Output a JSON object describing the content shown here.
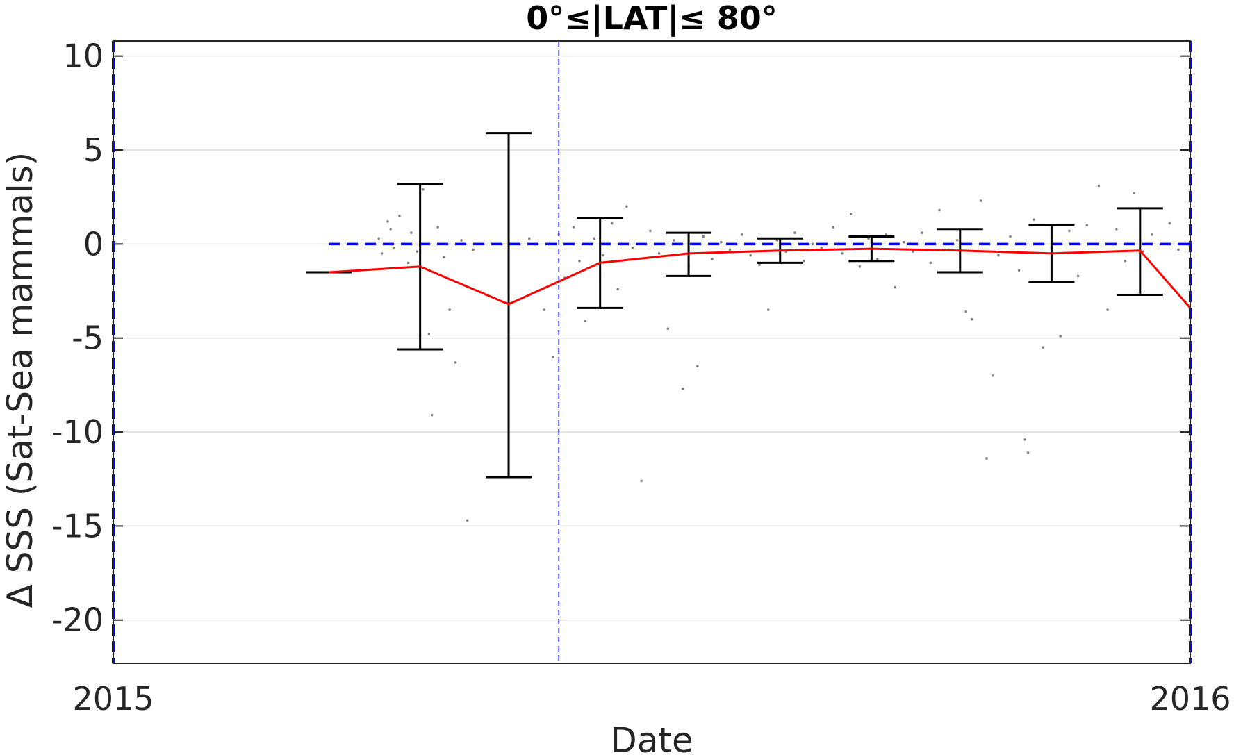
{
  "chart_data": {
    "type": "scatter",
    "title": "0°≤|LAT|≤ 80°",
    "xlabel": "Date",
    "ylabel": "Δ SSS (Sat-Sea mammals)",
    "xlim": [
      "2015-01-01",
      "2016-01-01"
    ],
    "ylim": [
      -22.3,
      10.8
    ],
    "x_ticks": [
      {
        "date": "2015-01-01",
        "label": "2015"
      },
      {
        "date": "2016-01-01",
        "label": "2016"
      }
    ],
    "y_ticks": [
      10,
      5,
      0,
      -5,
      -10,
      -15,
      -20
    ],
    "grid": true,
    "reference_lines": {
      "zero_line": {
        "y": 0,
        "color": "#0000ff",
        "style": "dashed"
      },
      "vertical_lines": [
        "2015-01-01",
        "2015-06-01",
        "2016-01-01"
      ]
    },
    "colors": {
      "mean_line": "#ff0000",
      "error_bars": "#000000",
      "points": "#808080",
      "reference": "#0000ff"
    },
    "monthly_mean": {
      "dates": [
        "2015-03-15",
        "2015-04-15",
        "2015-05-15",
        "2015-06-15",
        "2015-07-15",
        "2015-08-15",
        "2015-09-15",
        "2015-10-15",
        "2015-11-15",
        "2015-12-15",
        "2016-01-01"
      ],
      "values": [
        -1.5,
        -1.2,
        -3.2,
        -1.0,
        -0.5,
        -0.35,
        -0.25,
        -0.35,
        -0.5,
        -0.35,
        -3.4
      ]
    },
    "error_bars": [
      {
        "date": "2015-03-15",
        "lower": -1.5,
        "upper": -1.5
      },
      {
        "date": "2015-04-15",
        "lower": -5.6,
        "upper": 3.2
      },
      {
        "date": "2015-05-15",
        "lower": -12.4,
        "upper": 5.9
      },
      {
        "date": "2015-06-15",
        "lower": -3.4,
        "upper": 1.4
      },
      {
        "date": "2015-07-15",
        "lower": -1.7,
        "upper": 0.6
      },
      {
        "date": "2015-08-15",
        "lower": -1.0,
        "upper": 0.3
      },
      {
        "date": "2015-09-15",
        "lower": -0.9,
        "upper": 0.4
      },
      {
        "date": "2015-10-15",
        "lower": -1.5,
        "upper": 0.8
      },
      {
        "date": "2015-11-15",
        "lower": -2.0,
        "upper": 1.0
      },
      {
        "date": "2015-12-15",
        "lower": -2.7,
        "upper": 1.9
      }
    ],
    "scatter_points": [
      {
        "x": "2015-04-01",
        "y": 0.3
      },
      {
        "x": "2015-04-02",
        "y": -0.5
      },
      {
        "x": "2015-04-04",
        "y": 1.2
      },
      {
        "x": "2015-04-05",
        "y": 0.8
      },
      {
        "x": "2015-04-06",
        "y": -0.2
      },
      {
        "x": "2015-04-08",
        "y": 1.5
      },
      {
        "x": "2015-04-09",
        "y": 0.0
      },
      {
        "x": "2015-04-11",
        "y": -1.0
      },
      {
        "x": "2015-04-12",
        "y": 0.6
      },
      {
        "x": "2015-04-14",
        "y": -0.4
      },
      {
        "x": "2015-04-16",
        "y": 2.9
      },
      {
        "x": "2015-04-18",
        "y": -4.8
      },
      {
        "x": "2015-04-19",
        "y": -9.1
      },
      {
        "x": "2015-04-21",
        "y": 0.9
      },
      {
        "x": "2015-04-23",
        "y": -0.7
      },
      {
        "x": "2015-04-25",
        "y": -3.5
      },
      {
        "x": "2015-04-27",
        "y": -6.3
      },
      {
        "x": "2015-04-29",
        "y": 0.2
      },
      {
        "x": "2015-05-01",
        "y": -14.7
      },
      {
        "x": "2015-05-03",
        "y": -0.3
      },
      {
        "x": "2015-05-22",
        "y": 0.3
      },
      {
        "x": "2015-05-27",
        "y": -3.5
      },
      {
        "x": "2015-05-30",
        "y": -6.0
      },
      {
        "x": "2015-06-01",
        "y": 0.5
      },
      {
        "x": "2015-06-03",
        "y": -1.8
      },
      {
        "x": "2015-06-06",
        "y": 0.9
      },
      {
        "x": "2015-06-08",
        "y": -0.9
      },
      {
        "x": "2015-06-10",
        "y": -4.1
      },
      {
        "x": "2015-06-13",
        "y": 0.3
      },
      {
        "x": "2015-06-16",
        "y": -0.6
      },
      {
        "x": "2015-06-19",
        "y": 1.1
      },
      {
        "x": "2015-06-21",
        "y": -2.4
      },
      {
        "x": "2015-06-24",
        "y": 2.0
      },
      {
        "x": "2015-06-26",
        "y": -0.2
      },
      {
        "x": "2015-06-29",
        "y": -12.6
      },
      {
        "x": "2015-07-02",
        "y": 0.7
      },
      {
        "x": "2015-07-05",
        "y": -0.5
      },
      {
        "x": "2015-07-08",
        "y": -4.5
      },
      {
        "x": "2015-07-10",
        "y": 0.2
      },
      {
        "x": "2015-07-13",
        "y": -7.7
      },
      {
        "x": "2015-07-15",
        "y": -1.2
      },
      {
        "x": "2015-07-18",
        "y": -6.5
      },
      {
        "x": "2015-07-20",
        "y": 0.4
      },
      {
        "x": "2015-07-23",
        "y": -0.8
      },
      {
        "x": "2015-07-26",
        "y": 0.1
      },
      {
        "x": "2015-07-29",
        "y": -0.3
      },
      {
        "x": "2015-08-02",
        "y": 0.5
      },
      {
        "x": "2015-08-05",
        "y": -0.6
      },
      {
        "x": "2015-08-08",
        "y": -1.1
      },
      {
        "x": "2015-08-11",
        "y": -3.5
      },
      {
        "x": "2015-08-14",
        "y": 0.2
      },
      {
        "x": "2015-08-17",
        "y": -0.4
      },
      {
        "x": "2015-08-20",
        "y": 0.6
      },
      {
        "x": "2015-08-23",
        "y": -0.9
      },
      {
        "x": "2015-08-26",
        "y": 0.0
      },
      {
        "x": "2015-08-29",
        "y": -0.2
      },
      {
        "x": "2015-09-02",
        "y": 0.9
      },
      {
        "x": "2015-09-05",
        "y": -0.5
      },
      {
        "x": "2015-09-08",
        "y": 1.6
      },
      {
        "x": "2015-09-11",
        "y": -1.2
      },
      {
        "x": "2015-09-14",
        "y": 0.3
      },
      {
        "x": "2015-09-17",
        "y": -0.8
      },
      {
        "x": "2015-09-20",
        "y": 0.5
      },
      {
        "x": "2015-09-23",
        "y": -2.3
      },
      {
        "x": "2015-09-26",
        "y": 0.1
      },
      {
        "x": "2015-09-29",
        "y": -0.4
      },
      {
        "x": "2015-10-02",
        "y": 0.6
      },
      {
        "x": "2015-10-05",
        "y": -1.0
      },
      {
        "x": "2015-10-08",
        "y": 1.8
      },
      {
        "x": "2015-10-11",
        "y": -0.3
      },
      {
        "x": "2015-10-14",
        "y": 0.2
      },
      {
        "x": "2015-10-17",
        "y": -3.6
      },
      {
        "x": "2015-10-19",
        "y": -4.0
      },
      {
        "x": "2015-10-22",
        "y": 2.3
      },
      {
        "x": "2015-10-24",
        "y": -11.4
      },
      {
        "x": "2015-10-26",
        "y": -7.0
      },
      {
        "x": "2015-10-28",
        "y": -0.6
      },
      {
        "x": "2015-11-01",
        "y": 0.4
      },
      {
        "x": "2015-11-04",
        "y": -1.4
      },
      {
        "x": "2015-11-06",
        "y": -10.4
      },
      {
        "x": "2015-11-07",
        "y": -11.1
      },
      {
        "x": "2015-11-09",
        "y": 1.3
      },
      {
        "x": "2015-11-12",
        "y": -5.5
      },
      {
        "x": "2015-11-15",
        "y": -0.2
      },
      {
        "x": "2015-11-18",
        "y": -4.9
      },
      {
        "x": "2015-11-21",
        "y": 0.7
      },
      {
        "x": "2015-11-24",
        "y": -1.7
      },
      {
        "x": "2015-11-27",
        "y": 1.0
      },
      {
        "x": "2015-12-01",
        "y": 3.1
      },
      {
        "x": "2015-12-04",
        "y": -3.5
      },
      {
        "x": "2015-12-07",
        "y": 0.8
      },
      {
        "x": "2015-12-10",
        "y": -0.9
      },
      {
        "x": "2015-12-13",
        "y": 2.7
      },
      {
        "x": "2015-12-16",
        "y": -0.4
      },
      {
        "x": "2015-12-19",
        "y": 0.5
      },
      {
        "x": "2015-12-22",
        "y": -1.6
      },
      {
        "x": "2015-12-25",
        "y": 1.1
      },
      {
        "x": "2015-12-28",
        "y": -0.3
      }
    ]
  }
}
